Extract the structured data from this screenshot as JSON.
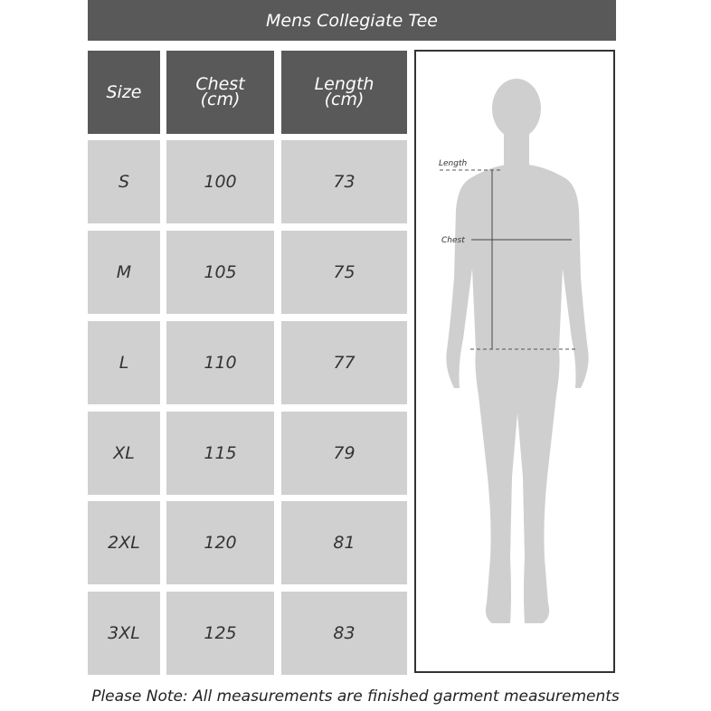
{
  "title": "Mens Collegiate Tee",
  "headers": {
    "size": "Size",
    "chest": "Chest",
    "chest_unit": "(cm)",
    "length": "Length",
    "length_unit": "(cm)"
  },
  "rows": [
    {
      "size": "S",
      "chest": "100",
      "length": "73"
    },
    {
      "size": "M",
      "chest": "105",
      "length": "75"
    },
    {
      "size": "L",
      "chest": "110",
      "length": "77"
    },
    {
      "size": "XL",
      "chest": "115",
      "length": "79"
    },
    {
      "size": "2XL",
      "chest": "120",
      "length": "81"
    },
    {
      "size": "3XL",
      "chest": "125",
      "length": "83"
    }
  ],
  "figure": {
    "length_label": "Length",
    "chest_label": "Chest"
  },
  "note": "Please Note: All measurements are finished garment measurements",
  "colors": {
    "header": "#595959",
    "cell": "#d0d0d0",
    "silhouette": "#cfcfcf"
  }
}
